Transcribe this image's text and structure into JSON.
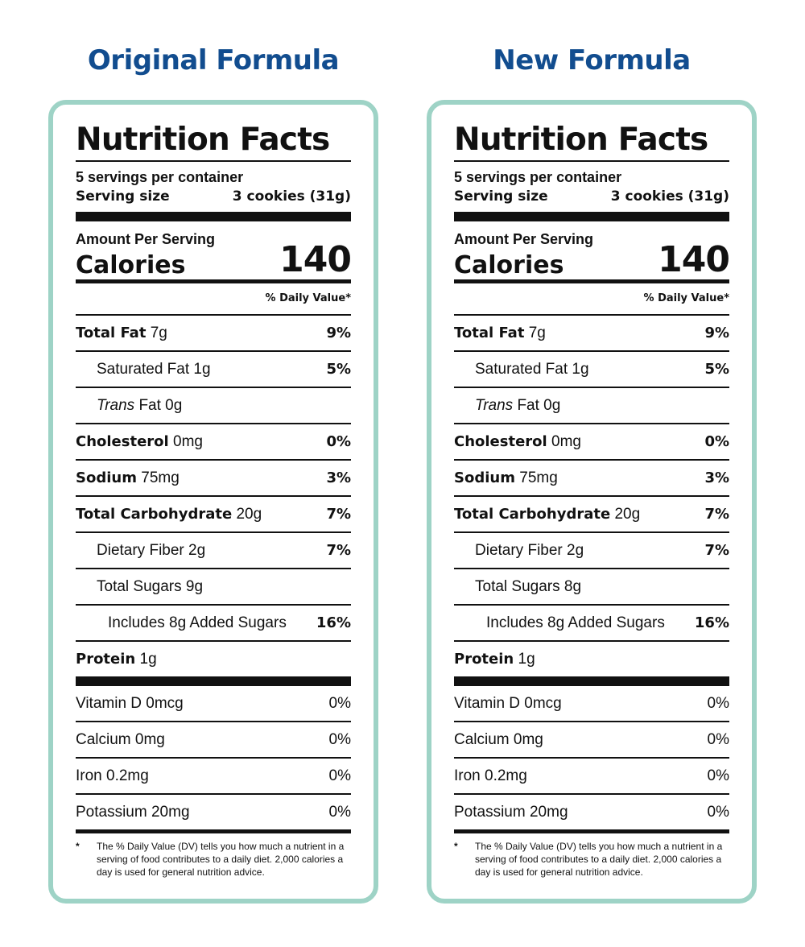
{
  "labels": [
    {
      "formula_title": "Original Formula",
      "heading": "Nutrition Facts",
      "servings": "5 servings per container",
      "serving_size_label": "Serving size",
      "serving_size_value": "3 cookies (31g)",
      "amount_per_serving": "Amount Per Serving",
      "calories_label": "Calories",
      "calories_value": "140",
      "dv_header": "% Daily Value*",
      "total_fat": {
        "name": "Total Fat",
        "amount": "7g",
        "dv": "9%"
      },
      "saturated_fat": {
        "name": "Saturated Fat 1g",
        "dv": "5%"
      },
      "trans_fat": {
        "italic": "Trans",
        "rest": "Fat 0g"
      },
      "cholesterol": {
        "name": "Cholesterol",
        "amount": "0mg",
        "dv": "0%"
      },
      "sodium": {
        "name": "Sodium",
        "amount": "75mg",
        "dv": "3%"
      },
      "total_carb": {
        "name": "Total Carbohydrate",
        "amount": "20g",
        "dv": "7%"
      },
      "fiber": {
        "name": "Dietary Fiber 2g",
        "dv": "7%"
      },
      "total_sugars": {
        "name": "Total Sugars 9g"
      },
      "added_sugars": {
        "name": "Includes 8g Added Sugars",
        "dv": "16%"
      },
      "protein": {
        "name": "Protein",
        "amount": "1g"
      },
      "vitamins": [
        {
          "name": "Vitamin D 0mcg",
          "dv": "0%"
        },
        {
          "name": "Calcium 0mg",
          "dv": "0%"
        },
        {
          "name": "Iron 0.2mg",
          "dv": "0%"
        },
        {
          "name": "Potassium 20mg",
          "dv": "0%"
        }
      ],
      "footnote_star": "*",
      "footnote": "The % Daily Value (DV) tells you how much a nutrient in a serving of food contributes to a daily diet. 2,000 calories a day is used for general nutrition advice."
    },
    {
      "formula_title": "New Formula",
      "heading": "Nutrition Facts",
      "servings": "5 servings per container",
      "serving_size_label": "Serving size",
      "serving_size_value": "3 cookies (31g)",
      "amount_per_serving": "Amount Per Serving",
      "calories_label": "Calories",
      "calories_value": "140",
      "dv_header": "% Daily Value*",
      "total_fat": {
        "name": "Total Fat",
        "amount": "7g",
        "dv": "9%"
      },
      "saturated_fat": {
        "name": "Saturated Fat 1g",
        "dv": "5%"
      },
      "trans_fat": {
        "italic": "Trans",
        "rest": "Fat 0g"
      },
      "cholesterol": {
        "name": "Cholesterol",
        "amount": "0mg",
        "dv": "0%"
      },
      "sodium": {
        "name": "Sodium",
        "amount": "75mg",
        "dv": "3%"
      },
      "total_carb": {
        "name": "Total Carbohydrate",
        "amount": "20g",
        "dv": "7%"
      },
      "fiber": {
        "name": "Dietary Fiber 2g",
        "dv": "7%"
      },
      "total_sugars": {
        "name": "Total Sugars 8g"
      },
      "added_sugars": {
        "name": "Includes 8g Added Sugars",
        "dv": "16%"
      },
      "protein": {
        "name": "Protein",
        "amount": "1g"
      },
      "vitamins": [
        {
          "name": "Vitamin D 0mcg",
          "dv": "0%"
        },
        {
          "name": "Calcium 0mg",
          "dv": "0%"
        },
        {
          "name": "Iron 0.2mg",
          "dv": "0%"
        },
        {
          "name": "Potassium 20mg",
          "dv": "0%"
        }
      ],
      "footnote_star": "*",
      "footnote": "The % Daily Value (DV) tells you how much a nutrient in a serving of food contributes to a daily diet. 2,000 calories a day is used for general nutrition advice."
    }
  ],
  "colors": {
    "title": "#124d8f",
    "panel_border": "#9ed3c6",
    "ink": "#111111"
  }
}
